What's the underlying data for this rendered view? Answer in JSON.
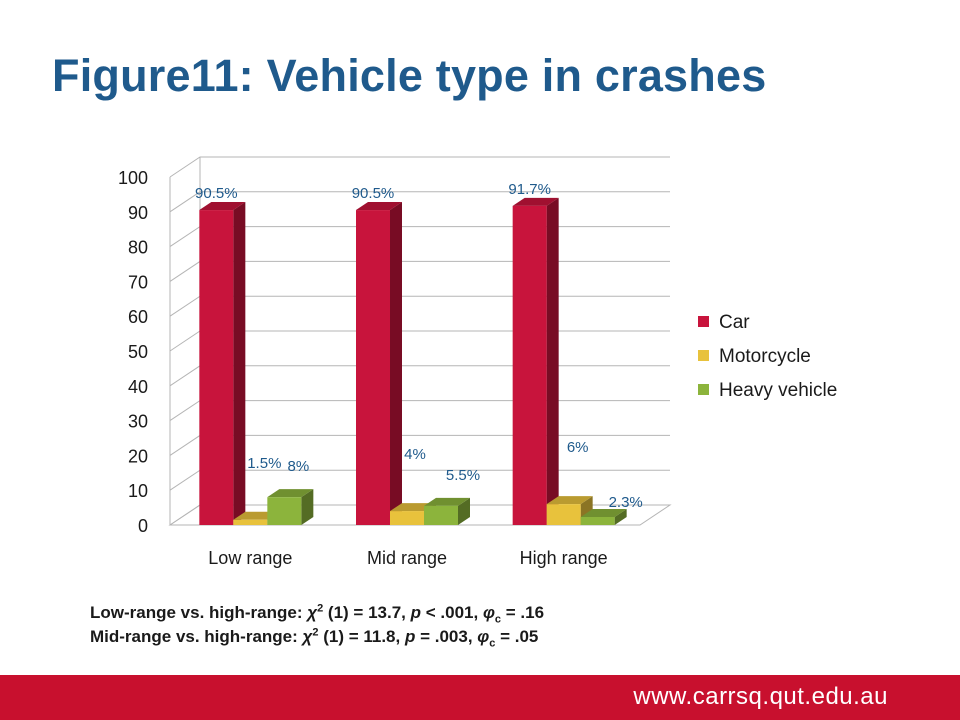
{
  "title": "Figure11: Vehicle type in crashes",
  "chart_data": {
    "type": "bar",
    "categories": [
      "Low range",
      "Mid range",
      "High range"
    ],
    "series": [
      {
        "name": "Car",
        "values": [
          90.5,
          90.5,
          91.7
        ],
        "labels": [
          "90.5%",
          "90.5%",
          "91.7%"
        ],
        "color": "#c8143c"
      },
      {
        "name": "Motorcycle",
        "values": [
          1.5,
          4,
          6
        ],
        "labels": [
          "1.5%",
          "4%",
          "6%"
        ],
        "color": "#e8c23c"
      },
      {
        "name": "Heavy vehicle",
        "values": [
          8,
          5.5,
          2.3
        ],
        "labels": [
          "8%",
          "5.5%",
          "2.3%"
        ],
        "color": "#8cb43c"
      }
    ],
    "ylim": [
      0,
      100
    ],
    "yticks": [
      0,
      10,
      20,
      30,
      40,
      50,
      60,
      70,
      80,
      90,
      100
    ],
    "legend_position": "right",
    "grid": true,
    "3d": true
  },
  "stats": {
    "line1": {
      "prefix": "Low-range vs. high-range: ",
      "chi": "χ",
      "sup": "2",
      "mid": " (1) = 13.7, ",
      "p": "p",
      "pval": " < .001, ",
      "phi": "φ",
      "sub": "c",
      "end": " = .16"
    },
    "line2": {
      "prefix": "Mid-range vs. high-range: ",
      "chi": "χ",
      "sup": "2",
      "mid": " (1) = 11.8, ",
      "p": "p",
      "pval": " = .003, ",
      "phi": "φ",
      "sub": "c",
      "end": " = .05"
    }
  },
  "footer": {
    "url": "www.carrsq.qut.edu.au",
    "color": "#c8102e"
  }
}
